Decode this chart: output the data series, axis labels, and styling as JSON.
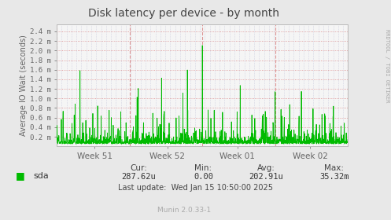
{
  "title": "Disk latency per device - by month",
  "ylabel": "Average IO Wait (seconds)",
  "ytick_vals": [
    0.0002,
    0.0004,
    0.0006,
    0.0008,
    0.001,
    0.0012,
    0.0014,
    0.0016,
    0.0018,
    0.002,
    0.0022,
    0.0024
  ],
  "ytick_labels": [
    "0.2 m",
    "0.4 m",
    "0.6 m",
    "0.8 m",
    "1.0 m",
    "1.2 m",
    "1.4 m",
    "1.6 m",
    "1.8 m",
    "2.0 m",
    "2.2 m",
    "2.4 m"
  ],
  "ylim": [
    0,
    0.00255
  ],
  "xtick_labels": [
    "Week 51",
    "Week 52",
    "Week 01",
    "Week 02"
  ],
  "fig_bg": "#e8e8e8",
  "plot_bg": "#f5f5f5",
  "line_color": "#00bb00",
  "grid_h_color": "#dd8888",
  "grid_v_color": "#aaaacc",
  "title_color": "#444444",
  "label_color": "#666666",
  "legend_label": "sda",
  "cur_label": "Cur:",
  "cur_val": "287.62u",
  "min_label": "Min:",
  "min_val": "0.00",
  "avg_label": "Avg:",
  "avg_val": "202.91u",
  "max_label": "Max:",
  "max_val": "35.32m",
  "last_update": "Last update:  Wed Jan 15 10:50:00 2025",
  "munin_label": "Munin 2.0.33-1",
  "rrdtool_label": "RRDTOOL / TOBI OETIKER",
  "num_points": 1500,
  "seed": 42
}
